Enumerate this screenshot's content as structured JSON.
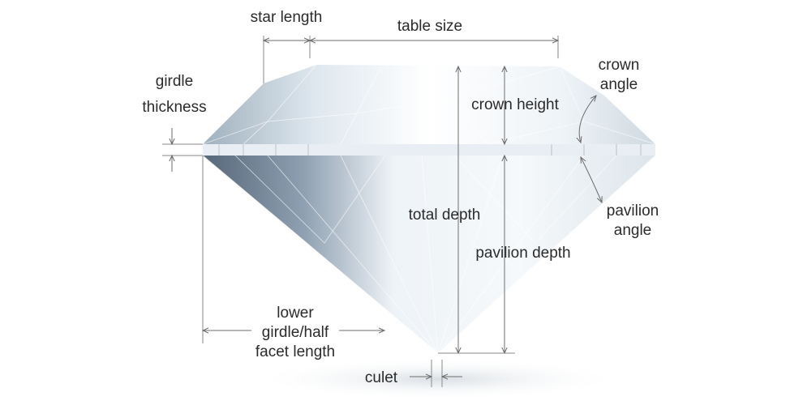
{
  "labels": {
    "star_length": "star length",
    "table_size": "table size",
    "girdle_thickness_1": "girdle",
    "girdle_thickness_2": "thickness",
    "crown_angle_1": "crown",
    "crown_angle_2": "angle",
    "crown_height": "crown height",
    "total_depth": "total depth",
    "pavilion_angle_1": "pavilion",
    "pavilion_angle_2": "angle",
    "pavilion_depth": "pavilion depth",
    "lower_girdle_1": "lower",
    "lower_girdle_2": "girdle/half",
    "lower_girdle_3": "facet length",
    "culet": "culet"
  }
}
